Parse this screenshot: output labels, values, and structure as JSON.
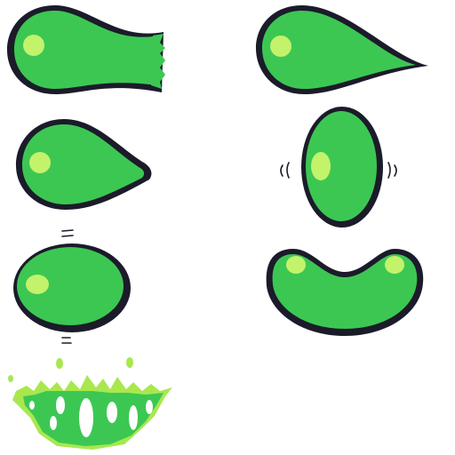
{
  "sprite_sheet": {
    "background": "#ffffff",
    "colors": {
      "body": "#3cc753",
      "outline": "#1b1b2a",
      "highlight": "#c3f26b",
      "splash_light": "#a8e84e"
    },
    "frames": [
      {
        "name": "stretch-tail-frayed"
      },
      {
        "name": "stretch-tail-pointed"
      },
      {
        "name": "teardrop"
      },
      {
        "name": "squash-vertical-oval"
      },
      {
        "name": "round-blob"
      },
      {
        "name": "kidney-squash"
      },
      {
        "name": "splat"
      }
    ]
  }
}
